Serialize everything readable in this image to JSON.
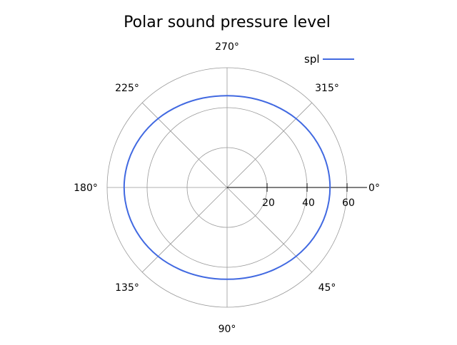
{
  "chart_data": {
    "type": "polar-line",
    "title": "Polar sound pressure level",
    "angle_direction": "clockwise",
    "angle_zero": "right",
    "angle_ticks": [
      "0°",
      "45°",
      "90°",
      "135°",
      "180°",
      "225°",
      "270°",
      "315°"
    ],
    "radial_ticks": [
      20,
      40,
      60
    ],
    "rlim": [
      0,
      60
    ],
    "grid": true,
    "legend_position": "top-right",
    "series": [
      {
        "name": "spl",
        "color": "#4169e1",
        "theta_deg": [
          0,
          15,
          30,
          45,
          60,
          75,
          90,
          105,
          120,
          135,
          150,
          165,
          180,
          195,
          210,
          225,
          240,
          255,
          270,
          285,
          300,
          315,
          330,
          345,
          360
        ],
        "r": [
          51.5,
          51.1,
          50.1,
          48.8,
          47.4,
          46.4,
          46.0,
          46.4,
          47.4,
          48.8,
          50.1,
          51.1,
          51.5,
          51.1,
          50.1,
          48.8,
          47.4,
          46.4,
          46.0,
          46.4,
          47.4,
          48.8,
          50.1,
          51.1,
          51.5
        ]
      }
    ]
  }
}
